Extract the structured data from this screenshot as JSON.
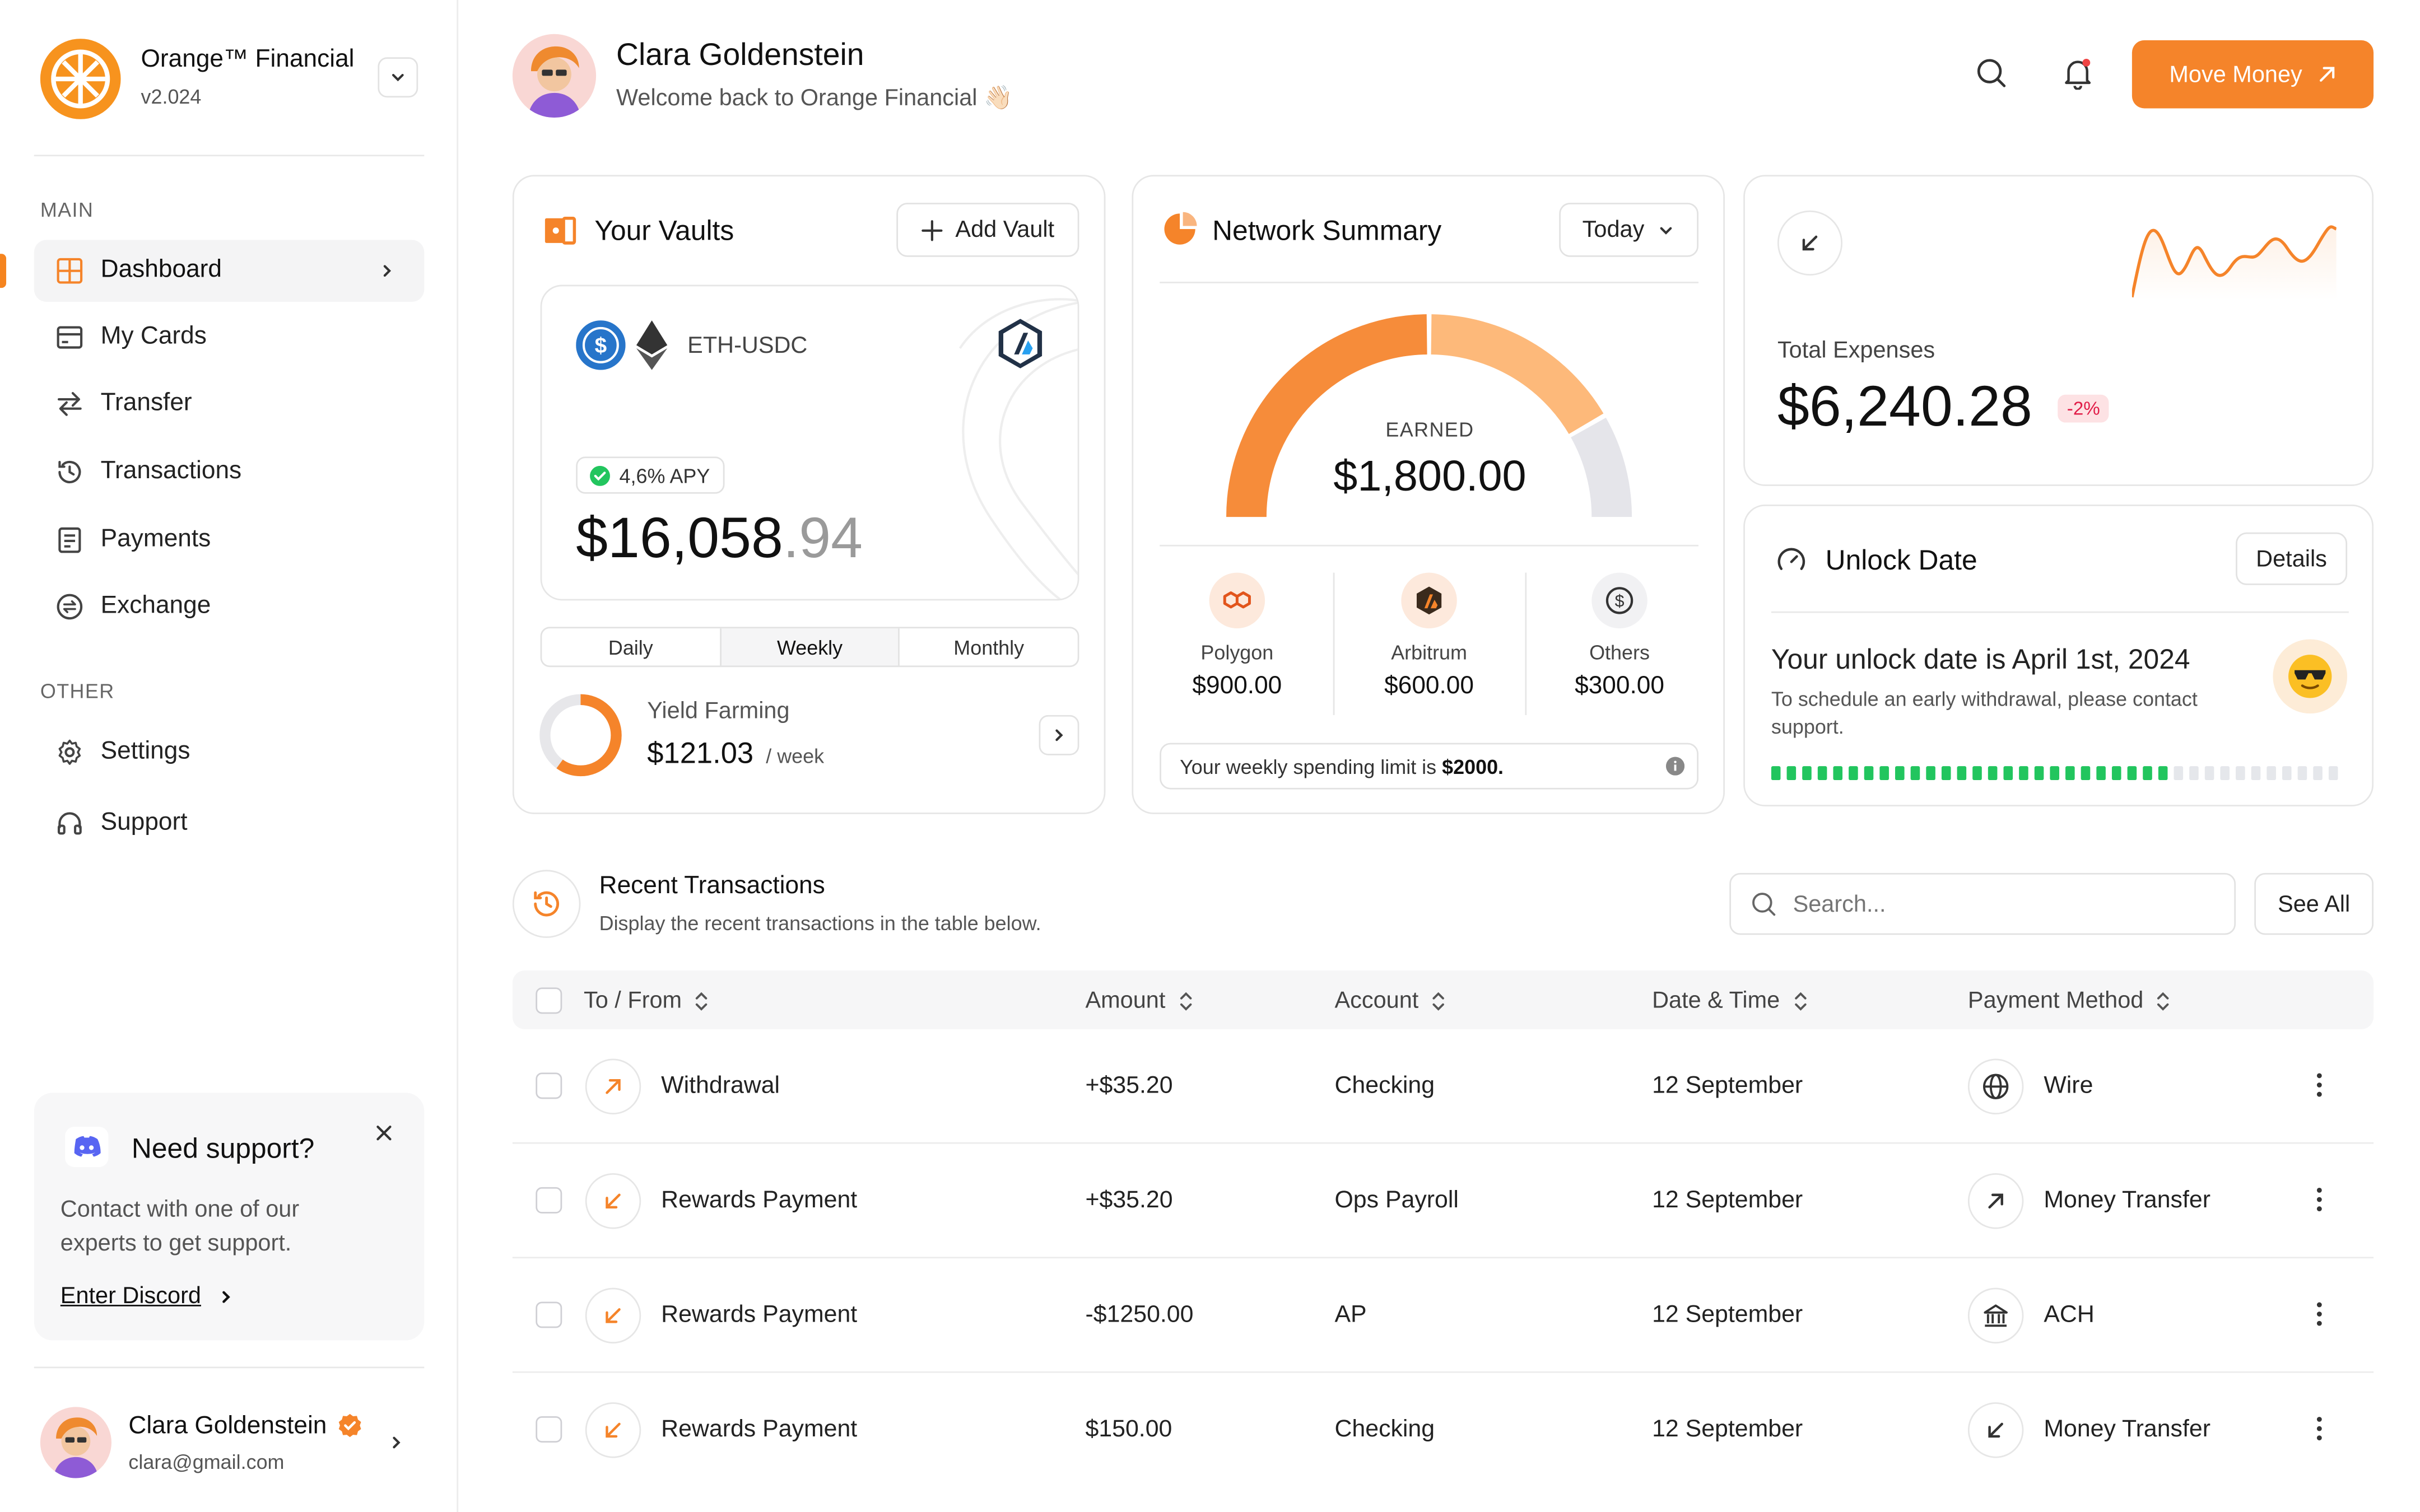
{
  "brand": {
    "name": "Orange™ Financial",
    "version": "v2.024"
  },
  "sidebar": {
    "main_label": "MAIN",
    "main_items": [
      {
        "label": "Dashboard",
        "icon": "grid-icon"
      },
      {
        "label": "My Cards",
        "icon": "card-icon"
      },
      {
        "label": "Transfer",
        "icon": "transfer-icon"
      },
      {
        "label": "Transactions",
        "icon": "history-icon"
      },
      {
        "label": "Payments",
        "icon": "document-icon"
      },
      {
        "label": "Exchange",
        "icon": "exchange-icon"
      }
    ],
    "other_label": "OTHER",
    "other_items": [
      {
        "label": "Settings",
        "icon": "gear-icon"
      },
      {
        "label": "Support",
        "icon": "headphones-icon"
      }
    ],
    "support": {
      "title": "Need support?",
      "text_1": "Contact with one of our",
      "text_2": "experts to get support.",
      "link": "Enter Discord"
    },
    "profile": {
      "name": "Clara Goldenstein",
      "email": "clara@gmail.com"
    }
  },
  "header": {
    "name": "Clara Goldenstein",
    "welcome": "Welcome back to Orange Financial 👋🏻",
    "move_money": "Move Money"
  },
  "vaults": {
    "title": "Your Vaults",
    "add_label": "Add Vault",
    "pair": "ETH-USDC",
    "apy": "4,6% APY",
    "amount_main": "$16,058",
    "amount_cents": ".94",
    "tabs": [
      "Daily",
      "Weekly",
      "Monthly"
    ],
    "active_tab": "Weekly",
    "yield": {
      "label": "Yield Farming",
      "value": "$121.03",
      "unit": "/ week",
      "progress": 0.6
    }
  },
  "network": {
    "title": "Network Summary",
    "period": "Today",
    "earned_label": "EARNED",
    "earned_value": "$1,800.00",
    "networks": [
      {
        "name": "Polygon",
        "value": "$900.00",
        "share": 0.5
      },
      {
        "name": "Arbitrum",
        "value": "$600.00",
        "share": 0.3333
      },
      {
        "name": "Others",
        "value": "$300.00",
        "share": 0.1667
      }
    ],
    "limit_text": "Your weekly spending limit is",
    "limit_value": "$2000."
  },
  "expenses": {
    "label": "Total Expenses",
    "value": "$6,240.28",
    "change": "-2%"
  },
  "unlock": {
    "title": "Unlock Date",
    "details": "Details",
    "headline": "Your unlock date is April 1st, 2024",
    "sub_1": "To schedule an early withdrawal, please contact",
    "sub_2": "support.",
    "progress": 0.69
  },
  "transactions": {
    "title": "Recent Transactions",
    "subtitle": "Display the recent transactions in the table below.",
    "search_placeholder": "Search...",
    "see_all": "See All",
    "columns": [
      "To / From",
      "Amount",
      "Account",
      "Date & Time",
      "Payment Method"
    ],
    "rows": [
      {
        "name": "Withdrawal",
        "amount": "+$35.20",
        "account": "Checking",
        "date": "12 September",
        "method": "Wire"
      },
      {
        "name": "Rewards Payment",
        "amount": "+$35.20",
        "account": "Ops Payroll",
        "date": "12 September",
        "method": "Money Transfer"
      },
      {
        "name": "Rewards Payment",
        "amount": "-$1250.00",
        "account": "AP",
        "date": "12 September",
        "method": "ACH"
      },
      {
        "name": "Rewards Payment",
        "amount": "$150.00",
        "account": "Checking",
        "date": "12 September",
        "method": "Money Transfer"
      }
    ]
  },
  "colors": {
    "accent": "#f5842a",
    "green": "#22c55e",
    "danger_bg": "#fde2e4",
    "danger": "#e11d48"
  }
}
